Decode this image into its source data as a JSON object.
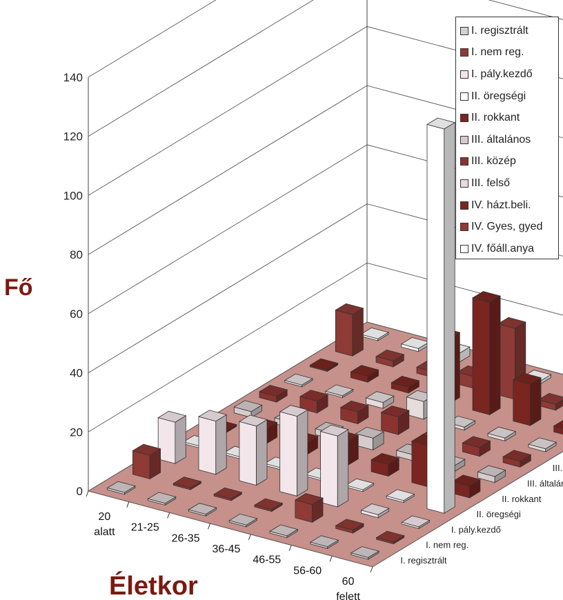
{
  "chart_data": {
    "type": "bar",
    "subtype": "3d-bar",
    "ylabel": "Fő",
    "xlabel": "Életkor",
    "ylim": [
      0,
      140
    ],
    "yticks": [
      "0",
      "20",
      "40",
      "60",
      "80",
      "100",
      "120",
      "140"
    ],
    "categories": [
      {
        "line1": "20",
        "line2": "alatt"
      },
      {
        "line1": "21-25",
        "line2": ""
      },
      {
        "line1": "26-35",
        "line2": ""
      },
      {
        "line1": "36-45",
        "line2": ""
      },
      {
        "line1": "46-55",
        "line2": ""
      },
      {
        "line1": "56-60",
        "line2": ""
      },
      {
        "line1": "60",
        "line2": "felett"
      }
    ],
    "series": [
      {
        "name": "I. regisztrált",
        "color": "#d8cfcf",
        "values": [
          0,
          0,
          0,
          0,
          0,
          0,
          0
        ]
      },
      {
        "name": "I. nem reg.",
        "color": "#8f3a35",
        "values": [
          8,
          0,
          0,
          0,
          6,
          1,
          0
        ]
      },
      {
        "name": "I. pály.kezdő",
        "color": "#f2e6ea",
        "values": [
          14,
          18,
          20,
          27,
          24,
          1,
          0
        ]
      },
      {
        "name": "II. öregségi",
        "color": "#ffffff",
        "values": [
          0,
          0,
          0,
          0,
          0,
          0,
          130
        ]
      },
      {
        "name": "II. rokkant",
        "color": "#7a2520",
        "values": [
          0,
          5,
          4,
          8,
          4,
          14,
          4
        ]
      },
      {
        "name": "III. általános",
        "color": "#d6cccc",
        "values": [
          2,
          2,
          2,
          4,
          2,
          2,
          2
        ]
      },
      {
        "name": "III. közép",
        "color": "#8a3330",
        "values": [
          2,
          4,
          4,
          6,
          2,
          3,
          2
        ]
      },
      {
        "name": "III. felső",
        "color": "#e6dcdc",
        "values": [
          0,
          0,
          2,
          6,
          1,
          1,
          1
        ]
      },
      {
        "name": "IV. házt.beli.",
        "color": "#7a2520",
        "values": [
          0,
          2,
          2,
          22,
          38,
          14,
          2
        ]
      },
      {
        "name": "IV. Gyes, gyed",
        "color": "#8e3a36",
        "values": [
          14,
          2,
          2,
          4,
          24,
          2,
          1
        ]
      },
      {
        "name": "IV. főáll.anya",
        "color": "#ffffff",
        "values": [
          0,
          1,
          3,
          1,
          1,
          2,
          0
        ]
      }
    ],
    "legend_position": "top-right",
    "grid": true
  },
  "colors": {
    "floor": "#c6908b",
    "axis_title": "#7a1a10",
    "gridline": "#555555"
  }
}
